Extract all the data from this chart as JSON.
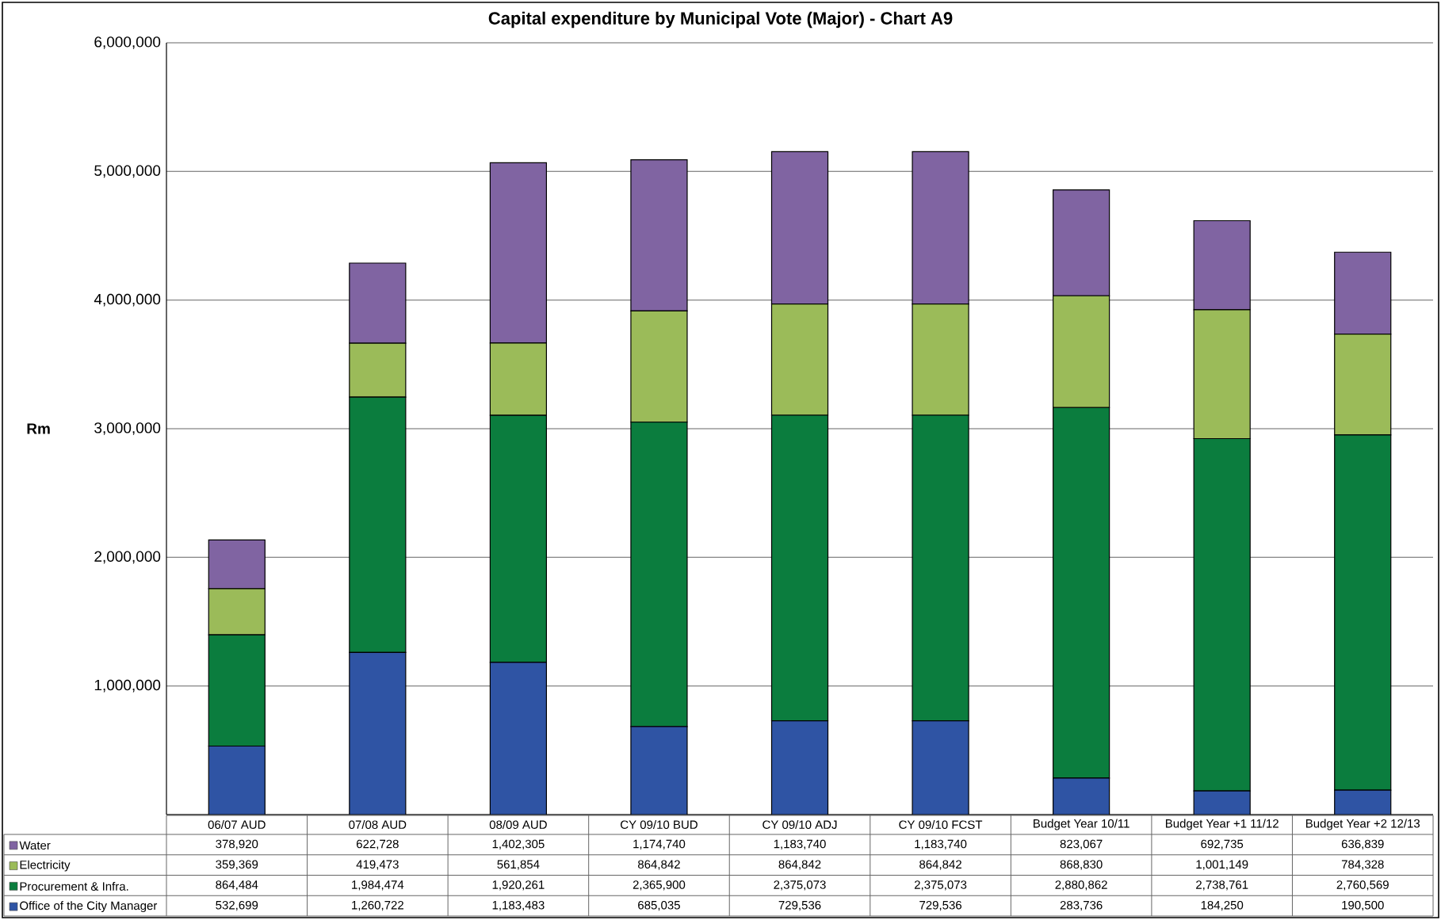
{
  "chart_data": {
    "type": "bar",
    "stacked": true,
    "title": "Capital expenditure by Municipal Vote (Major) - Chart A9",
    "ylabel": "Rm",
    "categories": [
      "06/07 AUD",
      "07/08 AUD",
      "08/09 AUD",
      "CY 09/10 BUD",
      "CY 09/10 ADJ",
      "CY 09/10 FCST",
      "Budget Year 10/11",
      "Budget Year +1 11/12",
      "Budget Year +2 12/13"
    ],
    "series": [
      {
        "name": "Office of the City Manager",
        "color": "#2f54a4",
        "values": [
          532699,
          1260722,
          1183483,
          685035,
          729536,
          729536,
          283736,
          184250,
          190500
        ],
        "value_labels": [
          "532,699",
          "1,260,722",
          "1,183,483",
          "685,035",
          "729,536",
          "729,536",
          "283,736",
          "184,250",
          "190,500"
        ]
      },
      {
        "name": "Procurement & Infra.",
        "color": "#0b7d3e",
        "values": [
          864484,
          1984474,
          1920261,
          2365900,
          2375073,
          2375073,
          2880862,
          2738761,
          2760569
        ],
        "value_labels": [
          "864,484",
          "1,984,474",
          "1,920,261",
          "2,365,900",
          "2,375,073",
          "2,375,073",
          "2,880,862",
          "2,738,761",
          "2,760,569"
        ]
      },
      {
        "name": "Electricity",
        "color": "#9bbb59",
        "values": [
          359369,
          419473,
          561854,
          864842,
          864842,
          864842,
          868830,
          1001149,
          784328
        ],
        "value_labels": [
          "359,369",
          "419,473",
          "561,854",
          "864,842",
          "864,842",
          "864,842",
          "868,830",
          "1,001,149",
          "784,328"
        ]
      },
      {
        "name": "Water",
        "color": "#8064a2",
        "values": [
          378920,
          622728,
          1402305,
          1174740,
          1183740,
          1183740,
          823067,
          692735,
          636839
        ],
        "value_labels": [
          "378,920",
          "622,728",
          "1,402,305",
          "1,174,740",
          "1,183,740",
          "1,183,740",
          "823,067",
          "692,735",
          "636,839"
        ]
      }
    ],
    "ylim": [
      0,
      6000000
    ],
    "yticks": [
      {
        "value": 0,
        "label": null
      },
      {
        "value": 1000000,
        "label": "1,000,000"
      },
      {
        "value": 2000000,
        "label": "2,000,000"
      },
      {
        "value": 3000000,
        "label": "3,000,000"
      },
      {
        "value": 4000000,
        "label": "4,000,000"
      },
      {
        "value": 5000000,
        "label": "5,000,000"
      },
      {
        "value": 6000000,
        "label": "6,000,000"
      }
    ],
    "grid": "y",
    "legend": "bottom left"
  }
}
